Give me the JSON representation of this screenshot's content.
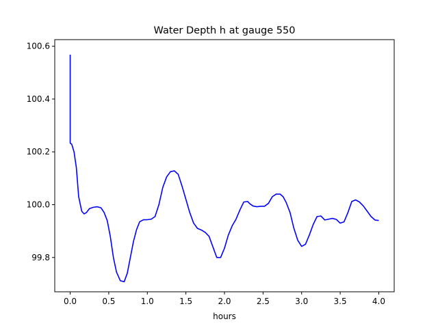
{
  "chart_data": {
    "type": "line",
    "title": "Water Depth h at gauge 550",
    "xlabel": "hours",
    "ylabel": "",
    "xlim": [
      -0.2,
      4.2
    ],
    "ylim": [
      99.67,
      100.625
    ],
    "xticks": [
      0.0,
      0.5,
      1.0,
      1.5,
      2.0,
      2.5,
      3.0,
      3.5,
      4.0
    ],
    "xtick_labels": [
      "0.0",
      "0.5",
      "1.0",
      "1.5",
      "2.0",
      "2.5",
      "3.0",
      "3.5",
      "4.0"
    ],
    "yticks": [
      99.8,
      100.0,
      100.2,
      100.4,
      100.6
    ],
    "ytick_labels": [
      "99.8",
      "100.0",
      "100.2",
      "100.4",
      "100.6"
    ],
    "grid": false,
    "series": [
      {
        "color": "#0000ff",
        "x": [
          0.0,
          0.0,
          0.02,
          0.05,
          0.08,
          0.11,
          0.15,
          0.18,
          0.21,
          0.25,
          0.3,
          0.35,
          0.4,
          0.44,
          0.48,
          0.52,
          0.56,
          0.6,
          0.65,
          0.7,
          0.74,
          0.78,
          0.82,
          0.86,
          0.9,
          0.95,
          1.0,
          1.05,
          1.1,
          1.15,
          1.2,
          1.25,
          1.3,
          1.35,
          1.4,
          1.45,
          1.5,
          1.55,
          1.6,
          1.65,
          1.7,
          1.75,
          1.8,
          1.85,
          1.9,
          1.95,
          2.0,
          2.05,
          2.1,
          2.15,
          2.2,
          2.25,
          2.3,
          2.33,
          2.37,
          2.42,
          2.47,
          2.52,
          2.57,
          2.62,
          2.67,
          2.72,
          2.76,
          2.8,
          2.85,
          2.9,
          2.95,
          3.0,
          3.05,
          3.1,
          3.15,
          3.2,
          3.25,
          3.3,
          3.35,
          3.4,
          3.45,
          3.5,
          3.55,
          3.6,
          3.65,
          3.7,
          3.75,
          3.8,
          3.85,
          3.9,
          3.95,
          4.0
        ],
        "y": [
          100.568,
          100.233,
          100.229,
          100.2,
          100.14,
          100.03,
          99.975,
          99.965,
          99.97,
          99.985,
          99.99,
          99.992,
          99.988,
          99.97,
          99.94,
          99.88,
          99.8,
          99.745,
          99.712,
          99.708,
          99.74,
          99.8,
          99.86,
          99.905,
          99.935,
          99.943,
          99.943,
          99.945,
          99.955,
          100.0,
          100.065,
          100.105,
          100.125,
          100.128,
          100.115,
          100.07,
          100.02,
          99.97,
          99.93,
          99.91,
          99.904,
          99.895,
          99.88,
          99.84,
          99.8,
          99.8,
          99.835,
          99.885,
          99.92,
          99.945,
          99.98,
          100.01,
          100.012,
          100.003,
          99.995,
          99.992,
          99.994,
          99.994,
          100.005,
          100.03,
          100.04,
          100.04,
          100.03,
          100.008,
          99.97,
          99.91,
          99.865,
          99.842,
          99.85,
          99.885,
          99.925,
          99.955,
          99.957,
          99.942,
          99.945,
          99.948,
          99.944,
          99.93,
          99.935,
          99.97,
          100.012,
          100.018,
          100.01,
          99.995,
          99.975,
          99.955,
          99.942,
          99.94
        ]
      }
    ]
  }
}
